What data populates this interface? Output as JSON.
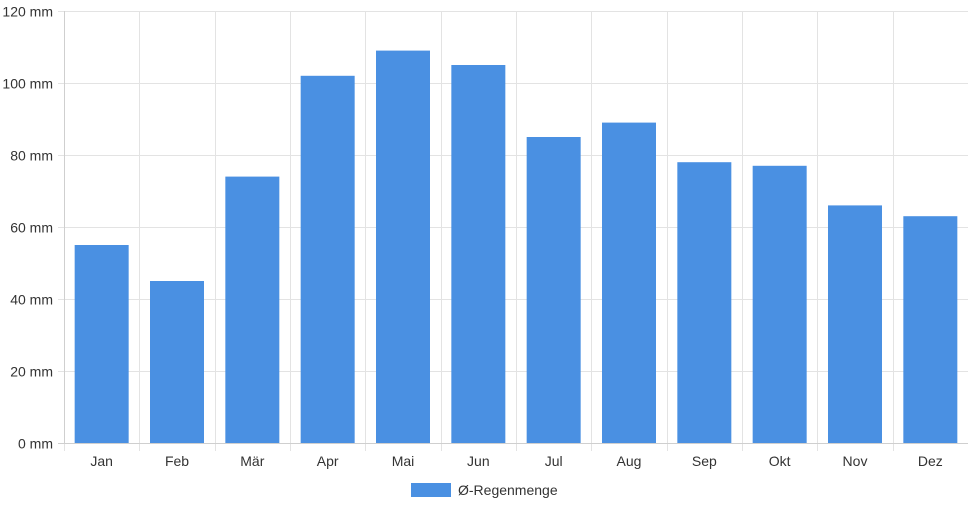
{
  "chart_data": {
    "type": "bar",
    "categories": [
      "Jan",
      "Feb",
      "Mär",
      "Apr",
      "Mai",
      "Jun",
      "Jul",
      "Aug",
      "Sep",
      "Okt",
      "Nov",
      "Dez"
    ],
    "series": [
      {
        "name": "Ø-Regenmenge",
        "color": "#4a90e2",
        "values": [
          55,
          45,
          74,
          102,
          109,
          105,
          85,
          89,
          78,
          77,
          66,
          63
        ]
      }
    ],
    "y_unit": "mm",
    "ylim": [
      0,
      120
    ],
    "y_ticks": [
      0,
      20,
      40,
      60,
      80,
      100,
      120
    ],
    "y_tick_labels": [
      "0 mm",
      "20 mm",
      "40 mm",
      "60 mm",
      "80 mm",
      "100 mm",
      "120 mm"
    ],
    "grid": true,
    "legend_position": "bottom",
    "gridline_color": "#e3e3e3"
  }
}
